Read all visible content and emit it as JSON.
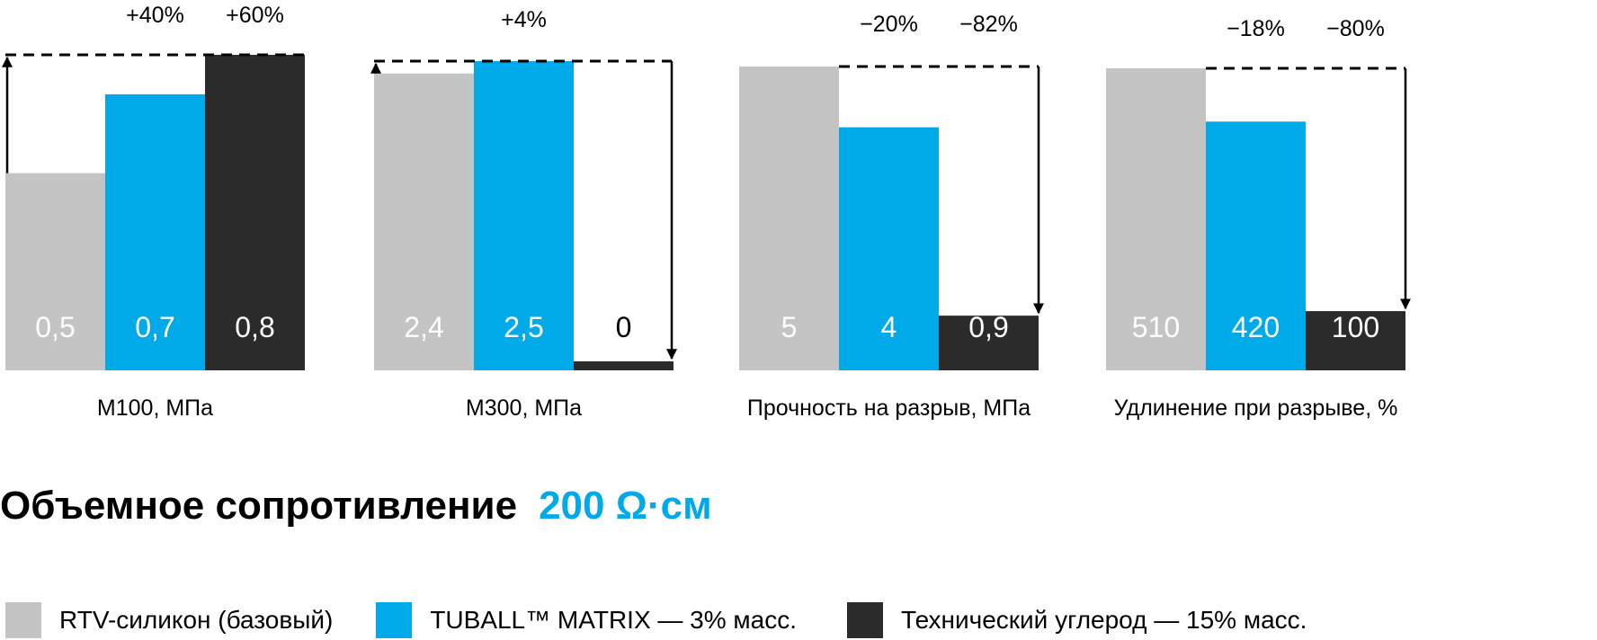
{
  "colors": {
    "base": "#c4c4c4",
    "tuball": "#00aae8",
    "carbon": "#2b2b2b",
    "accent": "#00aae8",
    "text": "#000000"
  },
  "series": [
    {
      "name": "RTV-силикон (базовый)",
      "color": "#c4c4c4"
    },
    {
      "name": "TUBALL™ MATRIX — 3% масс.",
      "color": "#00aae8"
    },
    {
      "name": "Технический углерод — 15% масс.",
      "color": "#2b2b2b"
    }
  ],
  "headline": {
    "label": "Объемное сопротивление",
    "value": "200 Ω·см"
  },
  "chart_data": [
    {
      "type": "bar",
      "title": "",
      "xlabel": "M100, МПа",
      "ylabel": "",
      "categories": [
        "RTV-силикон (базовый)",
        "TUBALL™ MATRIX — 3% масс.",
        "Технический углерод — 15% масс."
      ],
      "values": [
        0.5,
        0.7,
        0.8
      ],
      "value_labels": [
        "0,5",
        "0,7",
        "0,8"
      ],
      "changes": [
        "",
        "+40%",
        "+60%"
      ],
      "arrow_direction": "up",
      "ylim": [
        0,
        0.8
      ]
    },
    {
      "type": "bar",
      "title": "",
      "xlabel": "M300, МПа",
      "ylabel": "",
      "categories": [
        "RTV-силикон (базовый)",
        "TUBALL™ MATRIX — 3% масс.",
        "Технический углерод — 15% масс."
      ],
      "values": [
        2.4,
        2.5,
        0
      ],
      "value_labels": [
        "2,4",
        "2,5",
        "0"
      ],
      "changes": [
        "",
        "+4%",
        ""
      ],
      "arrow_direction": "both",
      "ylim": [
        0,
        2.5
      ]
    },
    {
      "type": "bar",
      "title": "",
      "xlabel": "Прочность на разрыв, МПа",
      "ylabel": "",
      "categories": [
        "RTV-силикон (базовый)",
        "TUBALL™ MATRIX — 3% масс.",
        "Технический углерод — 15% масс."
      ],
      "values": [
        5,
        4,
        0.9
      ],
      "value_labels": [
        "5",
        "4",
        "0,9"
      ],
      "changes": [
        "",
        "−20%",
        "−82%"
      ],
      "arrow_direction": "down",
      "ylim": [
        0,
        5
      ]
    },
    {
      "type": "bar",
      "title": "",
      "xlabel": "Удлинение при разрыве, %",
      "ylabel": "",
      "categories": [
        "RTV-силикон (базовый)",
        "TUBALL™ MATRIX — 3% масс.",
        "Технический углерод — 15% масс."
      ],
      "values": [
        510,
        420,
        100
      ],
      "value_labels": [
        "510",
        "420",
        "100"
      ],
      "changes": [
        "",
        "−18%",
        "−80%"
      ],
      "arrow_direction": "down",
      "ylim": [
        0,
        510
      ]
    }
  ]
}
